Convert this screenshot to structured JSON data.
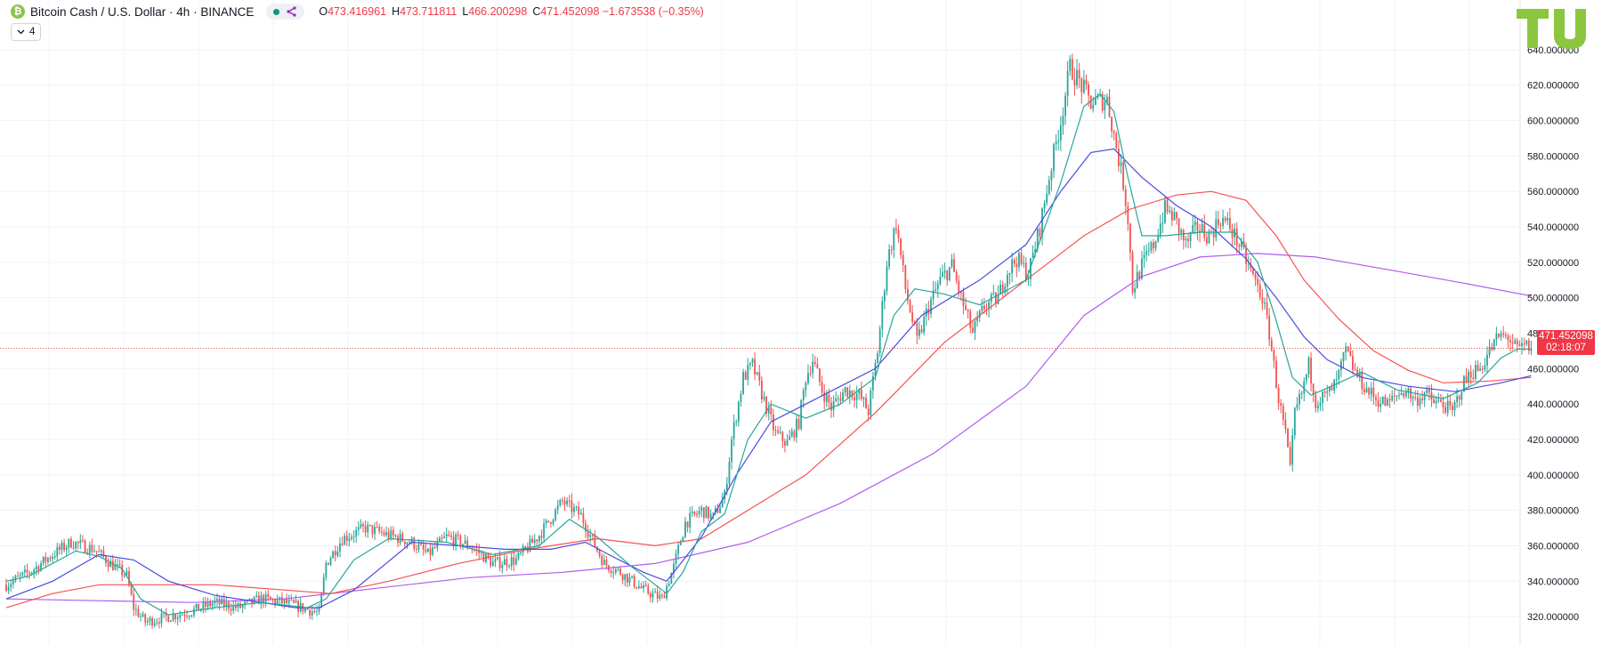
{
  "header": {
    "symbol_title": "Bitcoin Cash / U.S. Dollar · 4h · BINANCE",
    "ohlc": {
      "o_label": "O",
      "o_value": "473.416961",
      "h_label": "H",
      "h_value": "473.711811",
      "l_label": "L",
      "l_value": "466.200298",
      "c_label": "C",
      "c_value": "471.452098 −1.673538 (−0.35%)"
    },
    "indicator_count": "4"
  },
  "current_price": {
    "value": "471.452098",
    "countdown": "02:18:07"
  },
  "colors": {
    "up": "#26a69a",
    "down": "#ef5350",
    "ma_fast": "#26a69a",
    "ma_blue": "#4a4ae0",
    "ma_red": "#f5524f",
    "ma_purple": "#b05cf0",
    "logo_green": "#8cc63f"
  },
  "chart_data": {
    "type": "candlestick",
    "title": "Bitcoin Cash / U.S. Dollar · 4h · BINANCE",
    "ylim": [
      309,
      650
    ],
    "y_ticks": [
      320,
      340,
      360,
      380,
      400,
      420,
      440,
      460,
      480,
      500,
      520,
      540,
      560,
      580,
      600,
      620,
      640
    ],
    "y_tick_labels": [
      "320.000000",
      "340.000000",
      "360.000000",
      "380.000000",
      "400.000000",
      "420.000000",
      "440.000000",
      "460.000000",
      "480.000000",
      "500.000000",
      "520.000000",
      "540.000000",
      "560.000000",
      "580.000000",
      "600.000000",
      "620.000000",
      "640.000000"
    ],
    "last_price": 471.452098,
    "grid": true,
    "anchors": [
      [
        0,
        338
      ],
      [
        10,
        345
      ],
      [
        20,
        355
      ],
      [
        28,
        362
      ],
      [
        38,
        358
      ],
      [
        45,
        350
      ],
      [
        52,
        343
      ],
      [
        55,
        325
      ],
      [
        60,
        317
      ],
      [
        70,
        320
      ],
      [
        80,
        323
      ],
      [
        90,
        328
      ],
      [
        100,
        325
      ],
      [
        110,
        330
      ],
      [
        120,
        328
      ],
      [
        135,
        322
      ],
      [
        138,
        350
      ],
      [
        145,
        364
      ],
      [
        155,
        370
      ],
      [
        165,
        366
      ],
      [
        175,
        362
      ],
      [
        182,
        355
      ],
      [
        190,
        365
      ],
      [
        200,
        360
      ],
      [
        210,
        350
      ],
      [
        220,
        352
      ],
      [
        230,
        366
      ],
      [
        240,
        385
      ],
      [
        248,
        377
      ],
      [
        253,
        363
      ],
      [
        258,
        350
      ],
      [
        265,
        345
      ],
      [
        275,
        335
      ],
      [
        283,
        330
      ],
      [
        288,
        348
      ],
      [
        293,
        373
      ],
      [
        300,
        380
      ],
      [
        305,
        376
      ],
      [
        310,
        388
      ],
      [
        313,
        420
      ],
      [
        318,
        455
      ],
      [
        322,
        462
      ],
      [
        327,
        442
      ],
      [
        332,
        423
      ],
      [
        337,
        418
      ],
      [
        342,
        430
      ],
      [
        345,
        455
      ],
      [
        348,
        465
      ],
      [
        352,
        448
      ],
      [
        356,
        438
      ],
      [
        362,
        448
      ],
      [
        368,
        445
      ],
      [
        372,
        436
      ],
      [
        376,
        470
      ],
      [
        380,
        520
      ],
      [
        384,
        542
      ],
      [
        388,
        505
      ],
      [
        393,
        475
      ],
      [
        398,
        495
      ],
      [
        403,
        510
      ],
      [
        408,
        518
      ],
      [
        412,
        500
      ],
      [
        417,
        480
      ],
      [
        422,
        495
      ],
      [
        428,
        500
      ],
      [
        432,
        515
      ],
      [
        436,
        522
      ],
      [
        441,
        513
      ],
      [
        446,
        540
      ],
      [
        451,
        575
      ],
      [
        455,
        600
      ],
      [
        459,
        630
      ],
      [
        463,
        622
      ],
      [
        468,
        610
      ],
      [
        475,
        612
      ],
      [
        479,
        585
      ],
      [
        482,
        565
      ],
      [
        484,
        545
      ],
      [
        486,
        505
      ],
      [
        490,
        518
      ],
      [
        495,
        530
      ],
      [
        500,
        550
      ],
      [
        504,
        545
      ],
      [
        509,
        530
      ],
      [
        514,
        540
      ],
      [
        519,
        535
      ],
      [
        524,
        545
      ],
      [
        528,
        540
      ],
      [
        532,
        530
      ],
      [
        537,
        515
      ],
      [
        542,
        500
      ],
      [
        545,
        480
      ],
      [
        549,
        443
      ],
      [
        552,
        423
      ],
      [
        554,
        402
      ],
      [
        556,
        435
      ],
      [
        559,
        446
      ],
      [
        562,
        462
      ],
      [
        565,
        442
      ],
      [
        570,
        445
      ],
      [
        574,
        452
      ],
      [
        578,
        470
      ],
      [
        582,
        458
      ],
      [
        587,
        448
      ],
      [
        592,
        442
      ],
      [
        596,
        440
      ],
      [
        600,
        445
      ],
      [
        604,
        448
      ],
      [
        608,
        442
      ],
      [
        612,
        446
      ],
      [
        616,
        441
      ],
      [
        620,
        440
      ],
      [
        624,
        435
      ],
      [
        628,
        450
      ],
      [
        632,
        458
      ],
      [
        636,
        460
      ],
      [
        640,
        470
      ],
      [
        644,
        478
      ],
      [
        648,
        478
      ],
      [
        652,
        470
      ],
      [
        656,
        473
      ],
      [
        658,
        471.45
      ]
    ],
    "ma_fast": [
      [
        0,
        340
      ],
      [
        10,
        343
      ],
      [
        20,
        350
      ],
      [
        30,
        357
      ],
      [
        40,
        354
      ],
      [
        50,
        347
      ],
      [
        58,
        330
      ],
      [
        70,
        321
      ],
      [
        90,
        325
      ],
      [
        110,
        328
      ],
      [
        130,
        325
      ],
      [
        138,
        330
      ],
      [
        150,
        352
      ],
      [
        165,
        364
      ],
      [
        190,
        362
      ],
      [
        210,
        355
      ],
      [
        230,
        360
      ],
      [
        243,
        375
      ],
      [
        255,
        365
      ],
      [
        270,
        348
      ],
      [
        285,
        333
      ],
      [
        292,
        345
      ],
      [
        300,
        368
      ],
      [
        310,
        378
      ],
      [
        320,
        420
      ],
      [
        330,
        440
      ],
      [
        345,
        432
      ],
      [
        360,
        440
      ],
      [
        375,
        455
      ],
      [
        383,
        490
      ],
      [
        392,
        505
      ],
      [
        405,
        502
      ],
      [
        420,
        496
      ],
      [
        440,
        510
      ],
      [
        455,
        565
      ],
      [
        465,
        608
      ],
      [
        472,
        615
      ],
      [
        478,
        605
      ],
      [
        484,
        568
      ],
      [
        490,
        535
      ],
      [
        500,
        535
      ],
      [
        515,
        537
      ],
      [
        530,
        537
      ],
      [
        540,
        520
      ],
      [
        548,
        487
      ],
      [
        555,
        455
      ],
      [
        563,
        445
      ],
      [
        575,
        452
      ],
      [
        585,
        458
      ],
      [
        600,
        448
      ],
      [
        620,
        443
      ],
      [
        635,
        452
      ],
      [
        645,
        466
      ],
      [
        652,
        471
      ],
      [
        658,
        471
      ]
    ],
    "ma_blue": [
      [
        0,
        330
      ],
      [
        20,
        340
      ],
      [
        40,
        355
      ],
      [
        55,
        352
      ],
      [
        70,
        340
      ],
      [
        90,
        332
      ],
      [
        110,
        328
      ],
      [
        125,
        325
      ],
      [
        135,
        325
      ],
      [
        150,
        335
      ],
      [
        175,
        362
      ],
      [
        195,
        360
      ],
      [
        215,
        358
      ],
      [
        235,
        358
      ],
      [
        250,
        362
      ],
      [
        260,
        355
      ],
      [
        275,
        345
      ],
      [
        285,
        340
      ],
      [
        300,
        365
      ],
      [
        315,
        400
      ],
      [
        330,
        430
      ],
      [
        345,
        440
      ],
      [
        360,
        450
      ],
      [
        375,
        460
      ],
      [
        395,
        490
      ],
      [
        420,
        510
      ],
      [
        440,
        530
      ],
      [
        455,
        560
      ],
      [
        468,
        582
      ],
      [
        478,
        584
      ],
      [
        490,
        568
      ],
      [
        505,
        552
      ],
      [
        520,
        540
      ],
      [
        535,
        522
      ],
      [
        548,
        500
      ],
      [
        560,
        478
      ],
      [
        570,
        465
      ],
      [
        585,
        455
      ],
      [
        605,
        450
      ],
      [
        625,
        447
      ],
      [
        645,
        452
      ],
      [
        658,
        456
      ]
    ],
    "ma_red": [
      [
        0,
        325
      ],
      [
        20,
        333
      ],
      [
        40,
        338
      ],
      [
        60,
        338
      ],
      [
        90,
        338
      ],
      [
        120,
        335
      ],
      [
        140,
        333
      ],
      [
        165,
        340
      ],
      [
        195,
        350
      ],
      [
        225,
        358
      ],
      [
        255,
        364
      ],
      [
        280,
        360
      ],
      [
        300,
        364
      ],
      [
        320,
        380
      ],
      [
        345,
        400
      ],
      [
        375,
        435
      ],
      [
        405,
        475
      ],
      [
        440,
        510
      ],
      [
        465,
        535
      ],
      [
        485,
        550
      ],
      [
        505,
        558
      ],
      [
        520,
        560
      ],
      [
        535,
        555
      ],
      [
        548,
        535
      ],
      [
        560,
        510
      ],
      [
        575,
        488
      ],
      [
        590,
        470
      ],
      [
        605,
        459
      ],
      [
        620,
        452
      ],
      [
        640,
        453
      ],
      [
        658,
        455
      ]
    ],
    "ma_purple": [
      [
        0,
        330
      ],
      [
        40,
        329
      ],
      [
        80,
        328
      ],
      [
        120,
        330
      ],
      [
        160,
        336
      ],
      [
        200,
        342
      ],
      [
        240,
        345
      ],
      [
        280,
        350
      ],
      [
        320,
        362
      ],
      [
        360,
        384
      ],
      [
        400,
        412
      ],
      [
        440,
        450
      ],
      [
        465,
        490
      ],
      [
        490,
        512
      ],
      [
        515,
        523
      ],
      [
        540,
        525
      ],
      [
        565,
        523
      ],
      [
        600,
        515
      ],
      [
        630,
        508
      ],
      [
        658,
        501
      ]
    ]
  }
}
